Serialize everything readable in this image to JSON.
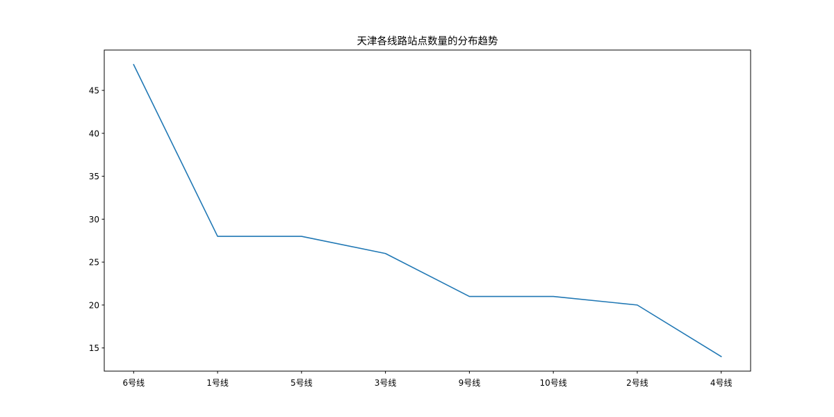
{
  "chart_data": {
    "type": "line",
    "title": "天津各线路站点数量的分布趋势",
    "xlabel": "",
    "ylabel": "",
    "categories": [
      "6号线",
      "1号线",
      "5号线",
      "3号线",
      "9号线",
      "10号线",
      "2号线",
      "4号线"
    ],
    "series": [
      {
        "values": [
          48,
          28,
          28,
          26,
          21,
          21,
          20,
          14
        ]
      }
    ],
    "yticks": [
      15,
      20,
      25,
      30,
      35,
      40,
      45
    ],
    "ylim": [
      12.3,
      49.7
    ],
    "grid": false,
    "legend": "none",
    "colors": {
      "line": "#1f77b4",
      "axes": "#000000",
      "background": "#ffffff"
    }
  }
}
